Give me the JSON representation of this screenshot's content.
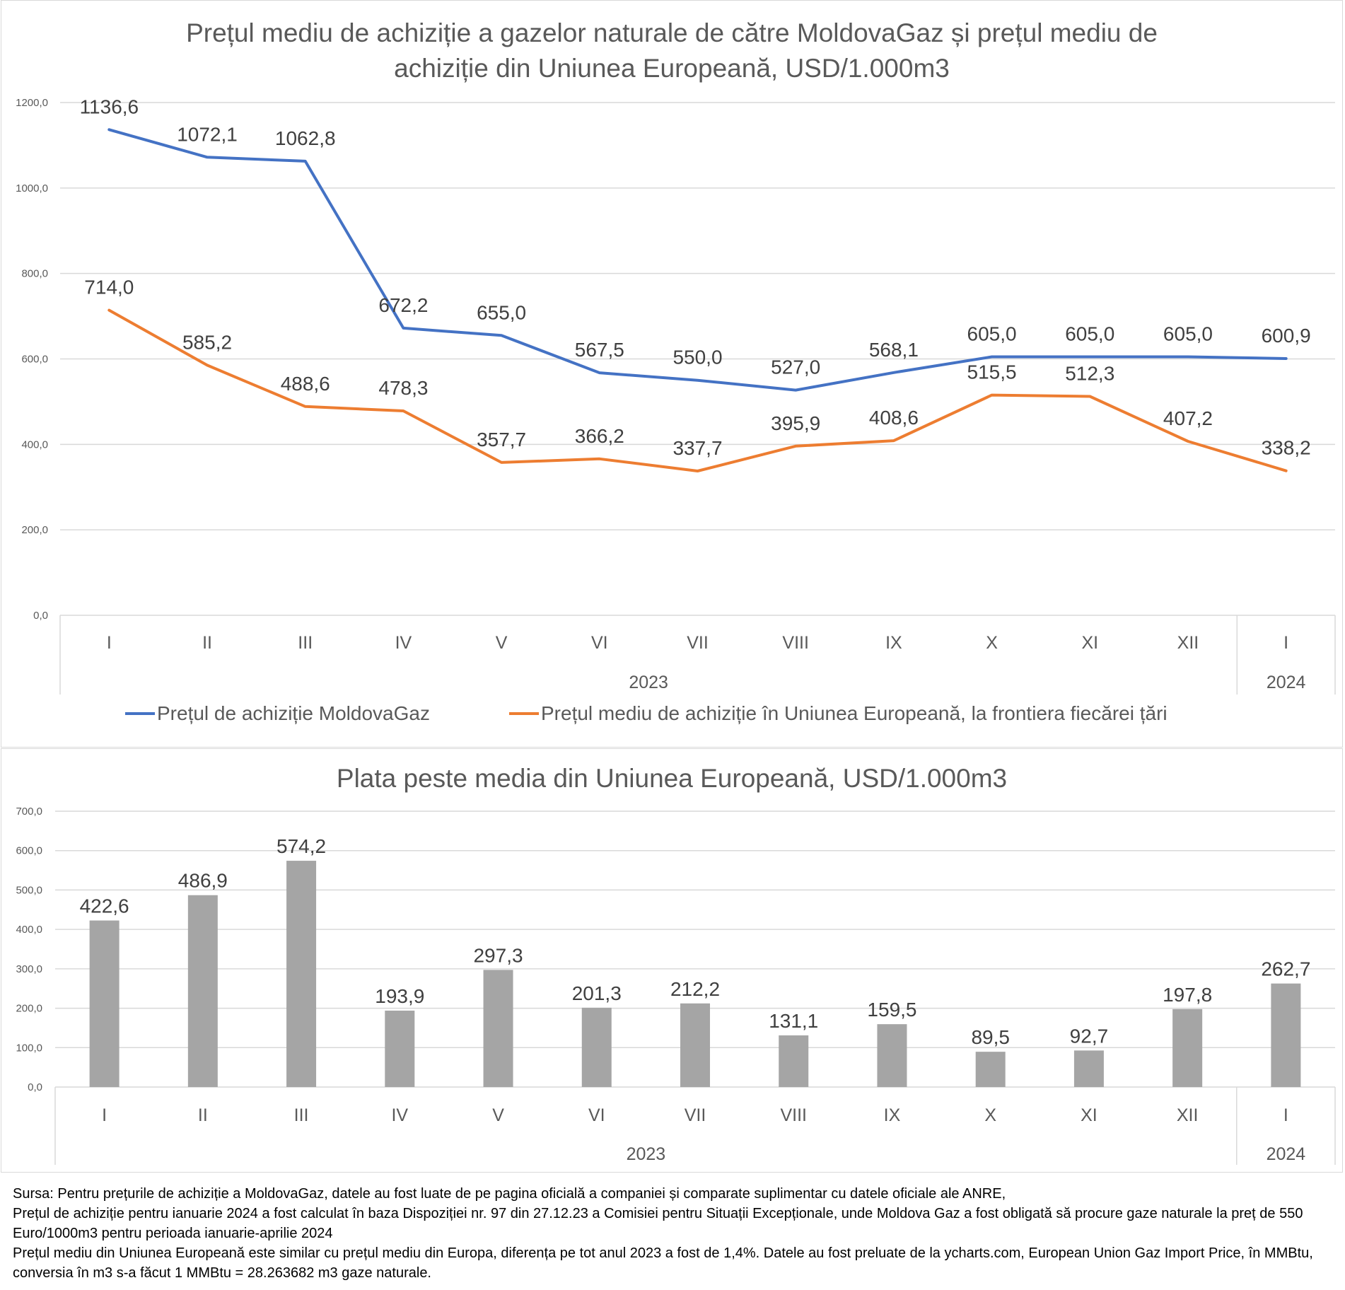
{
  "chart_data": [
    {
      "type": "line",
      "title_line1": "Prețul mediu de achiziție a gazelor naturale de către MoldovaGaz și prețul mediu de",
      "title_line2": "achiziție din Uniunea Europeană, USD/1.000m3",
      "categories": [
        "I",
        "II",
        "III",
        "IV",
        "V",
        "VI",
        "VII",
        "VIII",
        "IX",
        "X",
        "XI",
        "XII",
        "I"
      ],
      "year_groups": [
        {
          "label": "2023",
          "from": 0,
          "to": 11
        },
        {
          "label": "2024",
          "from": 12,
          "to": 12
        }
      ],
      "ylim": [
        0,
        1200
      ],
      "yticks": [
        "0,0",
        "200,0",
        "400,0",
        "600,0",
        "800,0",
        "1000,0",
        "1200,0"
      ],
      "ytick_values": [
        0,
        200,
        400,
        600,
        800,
        1000,
        1200
      ],
      "series": [
        {
          "name": "Prețul de achiziție MoldovaGaz",
          "color": "#4472c4",
          "values": [
            1136.6,
            1072.1,
            1062.8,
            672.2,
            655.0,
            567.5,
            550.0,
            527.0,
            568.1,
            605.0,
            605.0,
            605.0,
            600.9
          ],
          "labels": [
            "1136,6",
            "1072,1",
            "1062,8",
            "672,2",
            "655,0",
            "567,5",
            "550,0",
            "527,0",
            "568,1",
            "605,0",
            "605,0",
            "605,0",
            "600,9"
          ]
        },
        {
          "name": "Prețul mediu de achiziție în Uniunea Europeană, la frontiera fiecărei țări",
          "color": "#ed7d31",
          "values": [
            714.0,
            585.2,
            488.6,
            478.3,
            357.7,
            366.2,
            337.7,
            395.9,
            408.6,
            515.5,
            512.3,
            407.2,
            338.2
          ],
          "labels": [
            "714,0",
            "585,2",
            "488,6",
            "478,3",
            "357,7",
            "366,2",
            "337,7",
            "395,9",
            "408,6",
            "515,5",
            "512,3",
            "407,2",
            "338,2"
          ]
        }
      ],
      "legend": "bottom"
    },
    {
      "type": "bar",
      "title": "Plata peste media din Uniunea Europeană, USD/1.000m3",
      "categories": [
        "I",
        "II",
        "III",
        "IV",
        "V",
        "VI",
        "VII",
        "VIII",
        "IX",
        "X",
        "XI",
        "XII",
        "I"
      ],
      "year_groups": [
        {
          "label": "2023",
          "from": 0,
          "to": 11
        },
        {
          "label": "2024",
          "from": 12,
          "to": 12
        }
      ],
      "ylim": [
        0,
        700
      ],
      "yticks": [
        "0,0",
        "100,0",
        "200,0",
        "300,0",
        "400,0",
        "500,0",
        "600,0",
        "700,0"
      ],
      "ytick_values": [
        0,
        100,
        200,
        300,
        400,
        500,
        600,
        700
      ],
      "color": "#a5a5a5",
      "values": [
        422.6,
        486.9,
        574.2,
        193.9,
        297.3,
        201.3,
        212.2,
        131.1,
        159.5,
        89.5,
        92.7,
        197.8,
        262.7
      ],
      "labels": [
        "422,6",
        "486,9",
        "574,2",
        "193,9",
        "297,3",
        "201,3",
        "212,2",
        "131,1",
        "159,5",
        "89,5",
        "92,7",
        "197,8",
        "262,7"
      ]
    }
  ],
  "footnotes": [
    "Sursa: Pentru prețurile de achiziție a MoldovaGaz, datele au fost luate de pe pagina oficială a companiei și comparate suplimentar cu datele oficiale ale ANRE,",
    "Prețul de achiziție pentru ianuarie 2024 a fost calculat în baza Dispoziției nr. 97 din 27.12.23 a Comisiei pentru Situații Excepționale, unde Moldova Gaz a fost obligată să procure gaze naturale la preț de 550 Euro/1000m3 pentru perioada ianuarie-aprilie 2024",
    "Prețul mediu din Uniunea Europeană este similar cu prețul mediu din Europa, diferența pe tot anul 2023 a fost de 1,4%. Datele au fost preluate de la ycharts.com, European Union Gaz Import Price, în MMBtu, conversia în m3 s-a făcut 1 MMBtu = 28.263682 m3 gaze naturale."
  ]
}
